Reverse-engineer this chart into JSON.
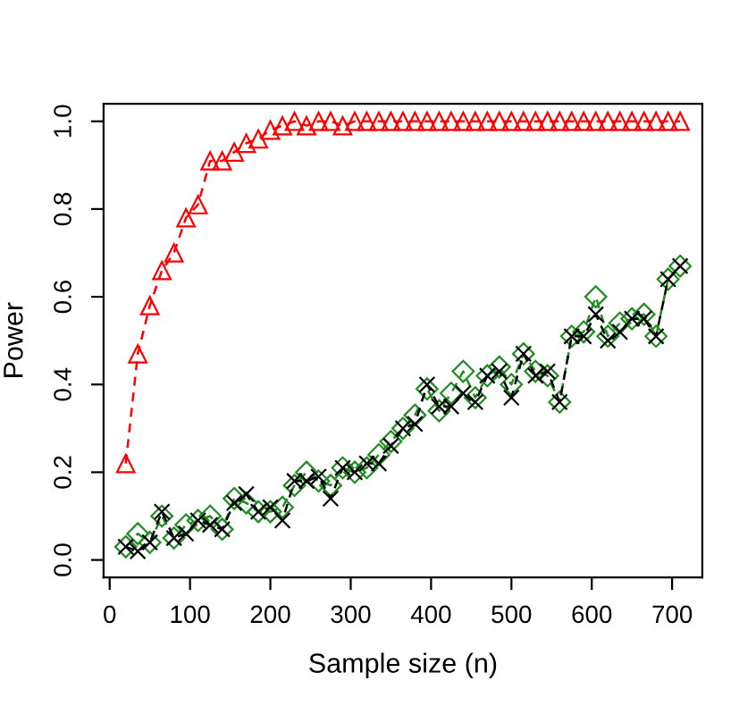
{
  "chart_data": {
    "type": "line",
    "xlabel": "Sample size (n)",
    "ylabel": "Power",
    "x": [
      20,
      35,
      50,
      65,
      80,
      95,
      110,
      125,
      140,
      155,
      170,
      185,
      200,
      215,
      230,
      245,
      260,
      275,
      290,
      305,
      320,
      335,
      350,
      365,
      380,
      395,
      410,
      425,
      440,
      455,
      470,
      485,
      500,
      515,
      530,
      545,
      560,
      575,
      590,
      605,
      620,
      635,
      650,
      665,
      680,
      695,
      710
    ],
    "series": [
      {
        "color": "#ff0000",
        "marker": "triangle",
        "line_style": "dashed",
        "values": [
          0.22,
          0.47,
          0.58,
          0.66,
          0.7,
          0.78,
          0.81,
          0.91,
          0.91,
          0.93,
          0.95,
          0.96,
          0.98,
          0.99,
          1.0,
          0.99,
          1.0,
          1.0,
          0.99,
          1.0,
          1.0,
          1.0,
          1.0,
          1.0,
          1.0,
          1.0,
          1.0,
          1.0,
          1.0,
          1.0,
          1.0,
          1.0,
          1.0,
          1.0,
          1.0,
          1.0,
          1.0,
          1.0,
          1.0,
          1.0,
          1.0,
          1.0,
          1.0,
          1.0,
          1.0,
          1.0,
          1.0
        ]
      },
      {
        "color": "#228b22",
        "marker": "diamond",
        "line_style": "dashed",
        "values": [
          0.03,
          0.06,
          0.04,
          0.1,
          0.05,
          0.08,
          0.09,
          0.1,
          0.07,
          0.14,
          0.13,
          0.11,
          0.11,
          0.12,
          0.17,
          0.2,
          0.18,
          0.17,
          0.21,
          0.2,
          0.21,
          0.24,
          0.27,
          0.3,
          0.33,
          0.39,
          0.34,
          0.38,
          0.43,
          0.37,
          0.42,
          0.44,
          0.4,
          0.47,
          0.43,
          0.42,
          0.36,
          0.51,
          0.52,
          0.6,
          0.51,
          0.54,
          0.55,
          0.56,
          0.51,
          0.64,
          0.67
        ]
      },
      {
        "color": "#000000",
        "marker": "cross",
        "line_style": "dashed",
        "values": [
          0.03,
          0.02,
          0.04,
          0.11,
          0.05,
          0.06,
          0.09,
          0.08,
          0.07,
          0.13,
          0.15,
          0.11,
          0.12,
          0.09,
          0.18,
          0.18,
          0.19,
          0.14,
          0.21,
          0.2,
          0.22,
          0.22,
          0.26,
          0.3,
          0.31,
          0.4,
          0.35,
          0.35,
          0.38,
          0.36,
          0.42,
          0.43,
          0.37,
          0.47,
          0.42,
          0.43,
          0.36,
          0.51,
          0.51,
          0.56,
          0.5,
          0.52,
          0.55,
          0.55,
          0.51,
          0.64,
          0.67
        ]
      }
    ],
    "xlim": [
      -7.6,
      737.6
    ],
    "ylim": [
      -0.04,
      1.04
    ],
    "xticks": [
      0,
      100,
      200,
      300,
      400,
      500,
      600,
      700
    ],
    "yticks": [
      {
        "value": 0,
        "label": "0.0"
      },
      {
        "value": 0.2,
        "label": "0.2"
      },
      {
        "value": 0.4,
        "label": "0.4"
      },
      {
        "value": 0.6,
        "label": "0.6"
      },
      {
        "value": 0.8,
        "label": "0.8"
      },
      {
        "value": 1,
        "label": "1.0"
      }
    ],
    "grid": false,
    "legend": false
  }
}
